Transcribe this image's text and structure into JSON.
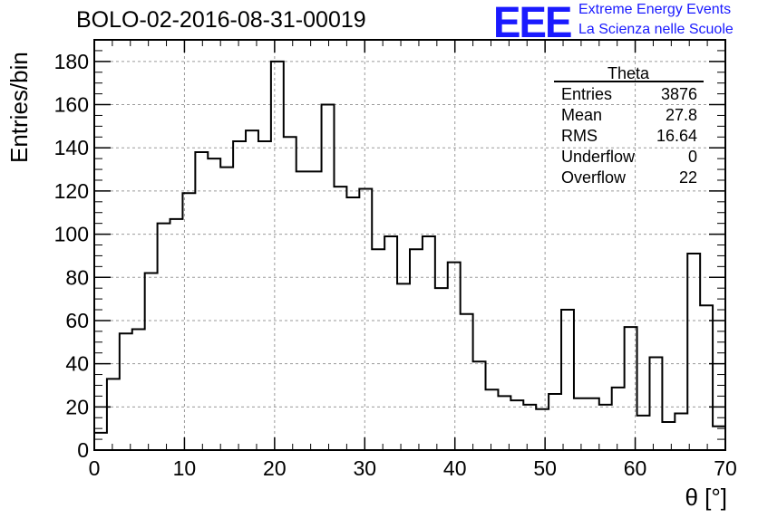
{
  "header": {
    "title": "BOLO-02-2016-08-31-00019"
  },
  "brand": {
    "logo": "EEE",
    "line1": "Extreme Energy Events",
    "line2": "La Scienza nelle Scuole"
  },
  "stats": {
    "title": "Theta",
    "rows": [
      {
        "label": "Entries",
        "value": "3876"
      },
      {
        "label": "Mean",
        "value": "27.8"
      },
      {
        "label": "RMS",
        "value": "16.64"
      },
      {
        "label": "Underflow",
        "value": "0"
      },
      {
        "label": "Overflow",
        "value": "22"
      }
    ]
  },
  "chart_data": {
    "type": "bar",
    "style": "step-histogram",
    "title": "BOLO-02-2016-08-31-00019",
    "xlabel": "θ [°]",
    "ylabel": "Entries/bin",
    "xlim": [
      0,
      70
    ],
    "ylim": [
      0,
      190
    ],
    "xticks": [
      0,
      10,
      20,
      30,
      40,
      50,
      60,
      70
    ],
    "yticks": [
      0,
      20,
      40,
      60,
      80,
      100,
      120,
      140,
      160,
      180
    ],
    "grid": true,
    "bin_width": 1.4,
    "bin_edges_start": 0,
    "values": [
      8,
      33,
      54,
      56,
      82,
      105,
      107,
      119,
      138,
      135,
      131,
      143,
      148,
      143,
      180,
      145,
      129,
      129,
      160,
      122,
      117,
      121,
      93,
      99,
      77,
      93,
      99,
      75,
      87,
      63,
      41,
      28,
      25,
      23,
      21,
      19,
      26,
      65,
      24,
      24,
      21,
      29,
      57,
      16,
      43,
      13,
      17,
      91,
      67,
      11
    ],
    "line_color": "#000000"
  }
}
